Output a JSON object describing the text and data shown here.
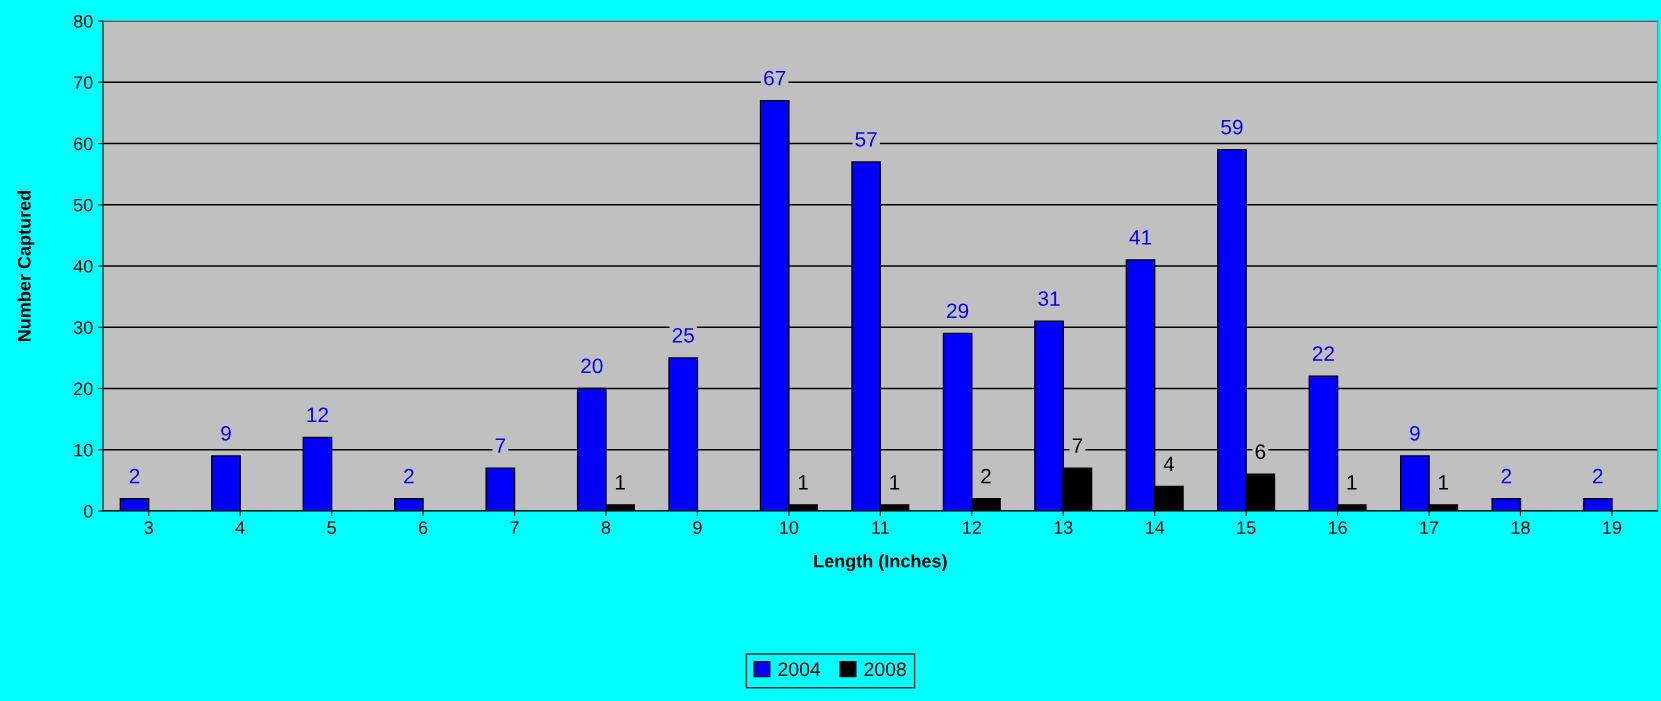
{
  "chart_data": {
    "type": "bar",
    "xlabel": "Length (Inches)",
    "ylabel": "Number Captured",
    "categories": [
      "3",
      "4",
      "5",
      "6",
      "7",
      "8",
      "9",
      "10",
      "11",
      "12",
      "13",
      "14",
      "15",
      "16",
      "17",
      "18",
      "19"
    ],
    "series": [
      {
        "name": "2004",
        "color": "#0000ff",
        "values": [
          2,
          9,
          12,
          2,
          7,
          20,
          25,
          67,
          57,
          29,
          31,
          41,
          59,
          22,
          9,
          2,
          2
        ]
      },
      {
        "name": "2008",
        "color": "#000000",
        "values": [
          null,
          null,
          null,
          null,
          null,
          1,
          null,
          1,
          1,
          2,
          7,
          4,
          6,
          1,
          1,
          null,
          null
        ]
      }
    ],
    "ylim": [
      0,
      80
    ],
    "yticks": [
      0,
      10,
      20,
      30,
      40,
      50,
      60,
      70,
      80
    ],
    "grid": "y",
    "legend": "bottom",
    "data_labels": true
  }
}
